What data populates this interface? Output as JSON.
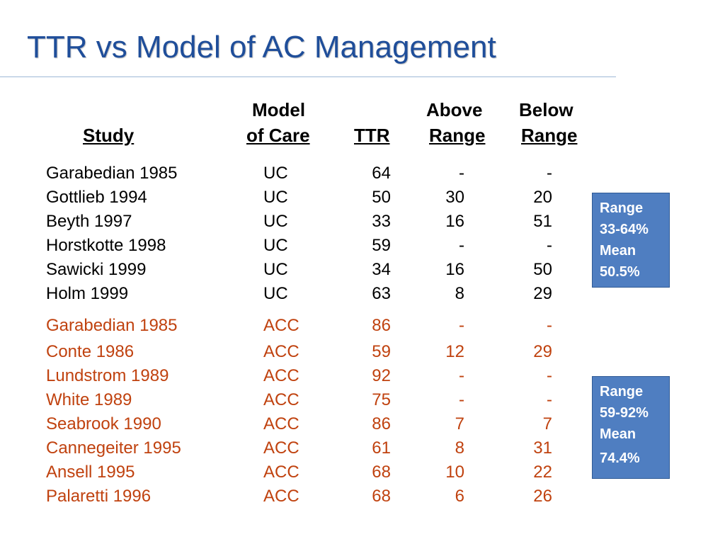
{
  "title": "TTR vs Model of AC Management",
  "headers": {
    "study": "Study",
    "model_line1": "Model",
    "model_line2": "of Care",
    "ttr": "TTR",
    "above_line1": "Above",
    "above_line2": "Range",
    "below_line1": "Below",
    "below_line2": "Range"
  },
  "rows": [
    {
      "study": "Garabedian 1985",
      "model": "UC",
      "ttr": "64",
      "above": "-",
      "below": "-"
    },
    {
      "study": "Gottlieb 1994",
      "model": "UC",
      "ttr": "50",
      "above": "30",
      "below": "20"
    },
    {
      "study": "Beyth 1997",
      "model": "UC",
      "ttr": "33",
      "above": "16",
      "below": "51"
    },
    {
      "study": "Horstkotte 1998",
      "model": "UC",
      "ttr": "59",
      "above": "-",
      "below": "-"
    },
    {
      "study": "Sawicki 1999",
      "model": "UC",
      "ttr": "34",
      "above": "16",
      "below": "50"
    },
    {
      "study": "Holm 1999",
      "model": "UC",
      "ttr": "63",
      "above": "8",
      "below": "29"
    },
    {
      "study": "Garabedian 1985",
      "model": "ACC",
      "ttr": "86",
      "above": "-",
      "below": "-"
    },
    {
      "study": "Conte 1986",
      "model": "ACC",
      "ttr": "59",
      "above": "12",
      "below": "29"
    },
    {
      "study": "Lundstrom 1989",
      "model": "ACC",
      "ttr": "92",
      "above": "-",
      "below": "-"
    },
    {
      "study": "White 1989",
      "model": "ACC",
      "ttr": "75",
      "above": "-",
      "below": "-"
    },
    {
      "study": "Seabrook 1990",
      "model": "ACC",
      "ttr": "86",
      "above": "7",
      "below": "7"
    },
    {
      "study": "Cannegeiter 1995",
      "model": "ACC",
      "ttr": "61",
      "above": "8",
      "below": "31"
    },
    {
      "study": "Ansell 1995",
      "model": "ACC",
      "ttr": "68",
      "above": "10",
      "below": "22"
    },
    {
      "study": "Palaretti 1996",
      "model": "ACC",
      "ttr": "68",
      "above": "6",
      "below": "26"
    }
  ],
  "callouts": {
    "uc": [
      "Range",
      "33-64%",
      "Mean",
      "50.5%"
    ],
    "acc": [
      "Range",
      "59-92%",
      "Mean",
      "74.4%"
    ]
  },
  "colors": {
    "title": "#1f4e9a",
    "uc_text": "#000000",
    "acc_text": "#c0420f",
    "callout_bg": "#4f7ec1"
  }
}
